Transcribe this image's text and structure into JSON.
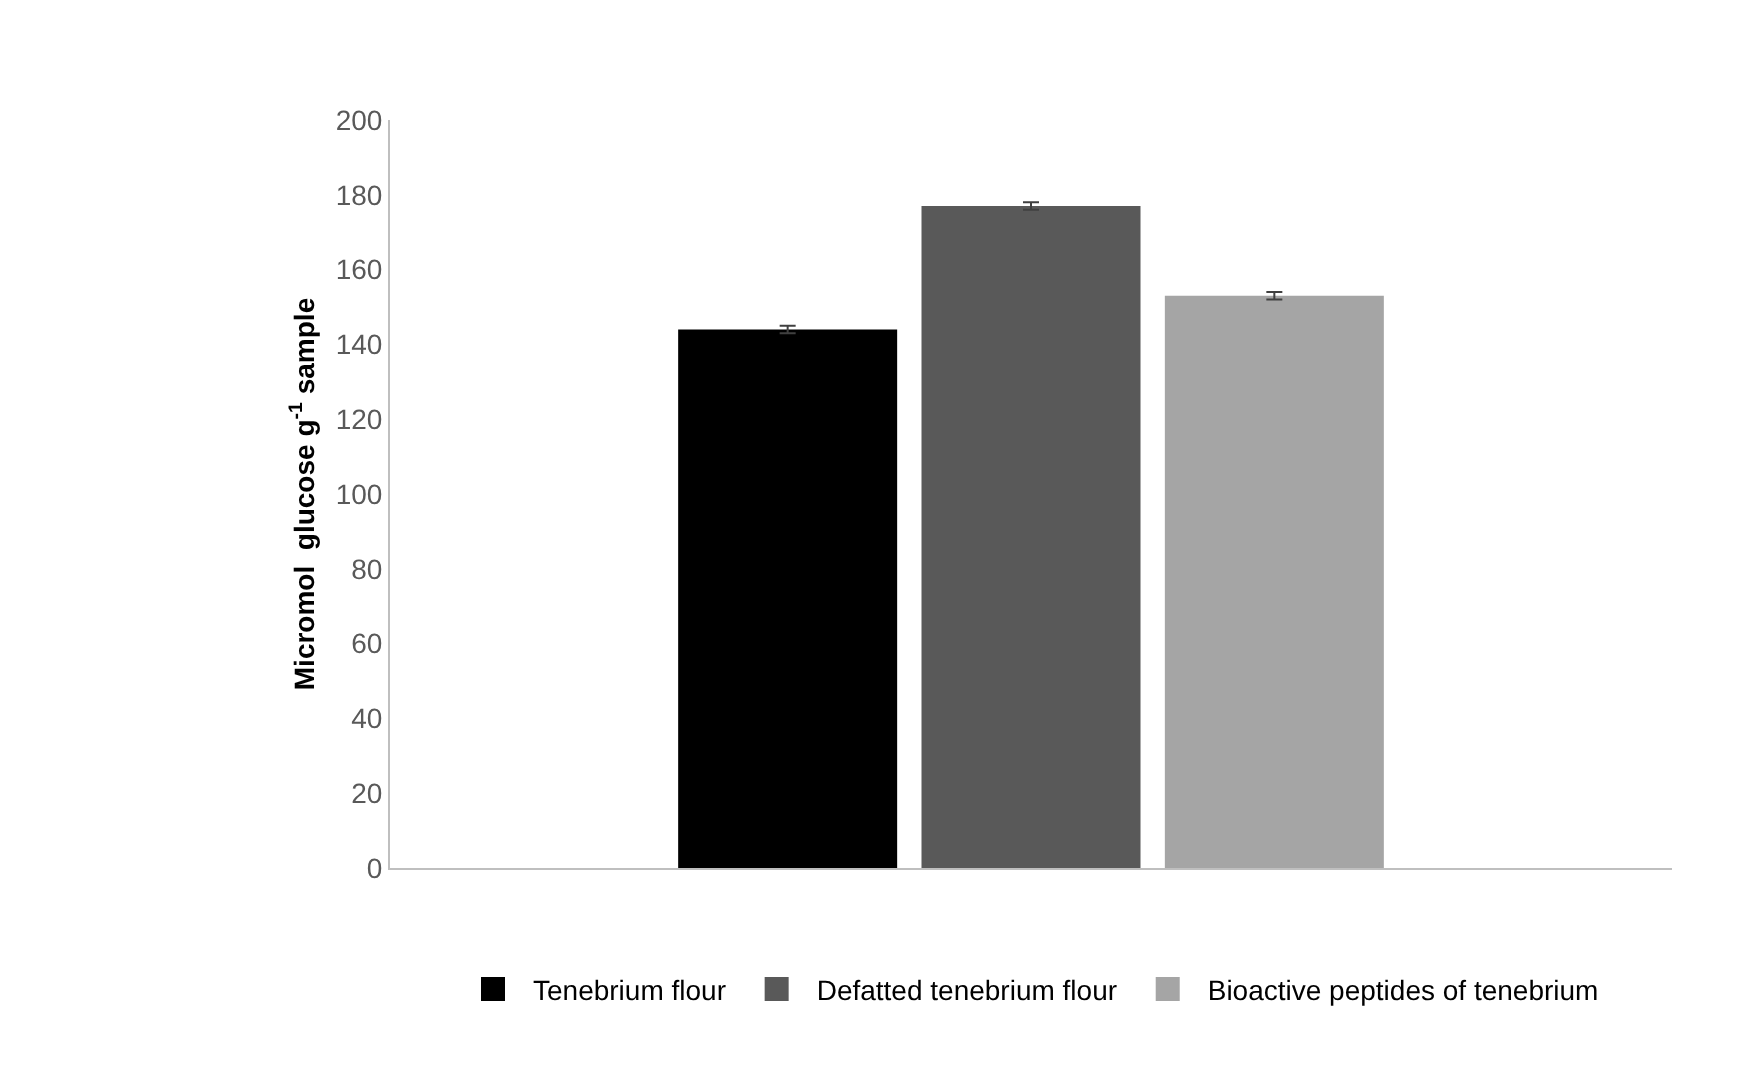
{
  "chart_data": {
    "type": "bar",
    "ylabel": "Micromol  glucose g$^{-1}$ sample",
    "categories": [
      null
    ],
    "series": [
      {
        "name": "Tenebrium flour",
        "color": "#000000",
        "values": [
          144
        ],
        "errors": [
          1
        ]
      },
      {
        "name": "Defatted tenebrium flour",
        "color": "#595959",
        "values": [
          177
        ],
        "errors": [
          1
        ]
      },
      {
        "name": "Bioactive peptides of tenebrium",
        "color": "#a5a5a5",
        "values": [
          153
        ],
        "errors": [
          1
        ]
      }
    ],
    "ylim": [
      0,
      200
    ],
    "yticks": [
      0,
      20,
      40,
      60,
      80,
      100,
      120,
      140,
      160,
      180,
      200
    ],
    "grid": false,
    "legend": "bottom"
  }
}
